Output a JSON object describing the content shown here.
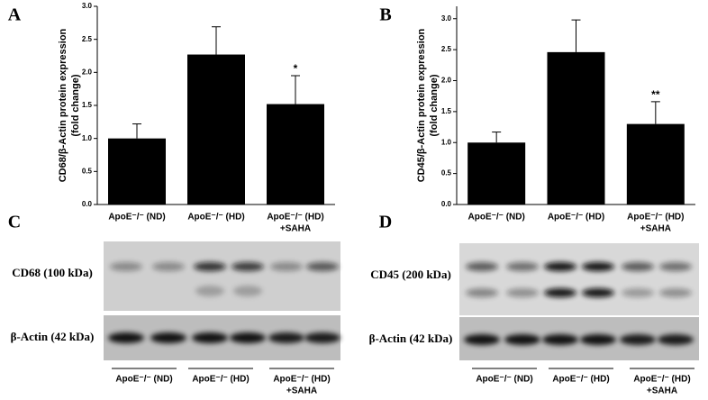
{
  "chart_data": [
    {
      "type": "bar",
      "panel": "A",
      "ylabel": [
        "CD68/β-Actin protein expression",
        "(fold change)"
      ],
      "categories": [
        "ApoE⁻/⁻ (ND)",
        "ApoE⁻/⁻ (HD)",
        [
          "ApoE⁻/⁻ (HD)",
          "+SAHA"
        ]
      ],
      "values": [
        1.0,
        2.27,
        1.52
      ],
      "errors": [
        0.22,
        0.42,
        0.43
      ],
      "color": "#000000",
      "annotations": [
        {
          "index": 2,
          "text": "*"
        }
      ],
      "ylim": [
        0,
        3
      ],
      "yticks": [
        {
          "value": 0,
          "label": "0.0"
        },
        {
          "value": 0.5,
          "label": "0.5"
        },
        {
          "value": 1,
          "label": "1.0"
        },
        {
          "value": 1.5,
          "label": "1.5"
        },
        {
          "value": 2,
          "label": "2.0"
        },
        {
          "value": 2.5,
          "label": "2.5"
        },
        {
          "value": 3,
          "label": "3.0"
        }
      ]
    },
    {
      "type": "bar",
      "panel": "B",
      "ylabel": [
        "CD45/β-Actin protein expression",
        "(fold change)"
      ],
      "categories": [
        "ApoE⁻/⁻ (ND)",
        "ApoE⁻/⁻ (HD)",
        [
          "ApoE⁻/⁻ (HD)",
          "+SAHA"
        ]
      ],
      "values": [
        1.0,
        2.46,
        1.3
      ],
      "errors": [
        0.17,
        0.52,
        0.36
      ],
      "color": "#000000",
      "annotations": [
        {
          "index": 2,
          "text": "**"
        }
      ],
      "ylim": [
        0,
        3.2
      ],
      "yticks": [
        {
          "value": 0,
          "label": "0.0"
        },
        {
          "value": 0.5,
          "label": "0.5"
        },
        {
          "value": 1,
          "label": "1.0"
        },
        {
          "value": 1.5,
          "label": "1.5"
        },
        {
          "value": 2,
          "label": "2.0"
        },
        {
          "value": 2.5,
          "label": "2.5"
        },
        {
          "value": 3,
          "label": "3.0"
        }
      ]
    }
  ],
  "blots": [
    {
      "panel": "C",
      "rows": [
        "CD68 (100 kDa)",
        "β-Actin (42 kDa)"
      ],
      "groups": [
        "ApoE⁻/⁻ (ND)",
        "ApoE⁻/⁻ (HD)",
        [
          "ApoE⁻/⁻ (HD)",
          "+SAHA"
        ]
      ]
    },
    {
      "panel": "D",
      "rows": [
        "CD45 (200 kDa)",
        "β-Actin (42 kDa)"
      ],
      "groups": [
        "ApoE⁻/⁻ (ND)",
        "ApoE⁻/⁻ (HD)",
        [
          "ApoE⁻/⁻ (HD)",
          "+SAHA"
        ]
      ]
    }
  ]
}
